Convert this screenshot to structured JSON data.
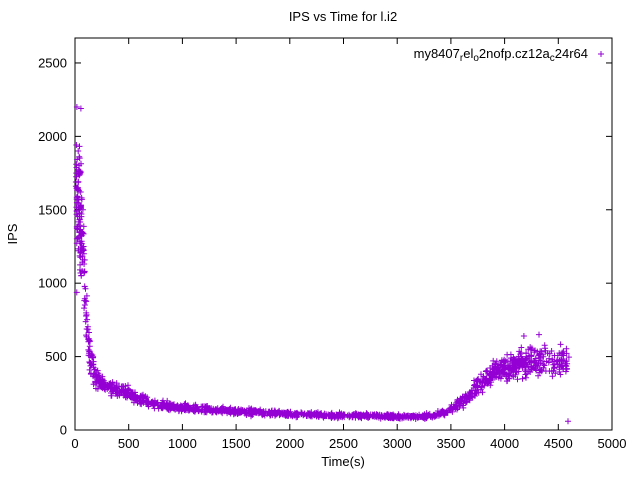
{
  "window": {
    "title": "IPS vs Time for l.i2"
  },
  "chart_data": {
    "type": "scatter",
    "title": "IPS vs Time for l.i2",
    "xlabel": "Time(s)",
    "ylabel": "IPS",
    "xlim": [
      0,
      5000
    ],
    "ylim": [
      0,
      2670
    ],
    "xticks": [
      0,
      500,
      1000,
      1500,
      2000,
      2500,
      3000,
      3500,
      4000,
      4500,
      5000
    ],
    "yticks": [
      0,
      500,
      1000,
      1500,
      2000,
      2500
    ],
    "grid": false,
    "legend_position": "top-right-inside",
    "marker": "plus",
    "marker_color": "#9400d3",
    "series": [
      {
        "name": "my8407_rel_o2nofp.cz12a_c24r64",
        "label_segments": [
          {
            "text": "my8407",
            "sub": false
          },
          {
            "text": "r",
            "sub": true
          },
          {
            "text": "el",
            "sub": false
          },
          {
            "text": "o",
            "sub": true
          },
          {
            "text": "2nofp.cz12a",
            "sub": false
          },
          {
            "text": "c",
            "sub": true
          },
          {
            "text": "24r64",
            "sub": false
          }
        ],
        "color": "#9400d3",
        "seed": 7,
        "trend_profile": [
          [
            8,
            1550,
            640,
            95
          ],
          [
            60,
            1400,
            500,
            40
          ],
          [
            100,
            800,
            250,
            30
          ],
          [
            140,
            500,
            140,
            32
          ],
          [
            200,
            340,
            80,
            40
          ],
          [
            300,
            290,
            60,
            55
          ],
          [
            450,
            270,
            60,
            60
          ],
          [
            600,
            210,
            50,
            60
          ],
          [
            800,
            170,
            40,
            75
          ],
          [
            1000,
            150,
            35,
            95
          ],
          [
            1300,
            135,
            30,
            95
          ],
          [
            1600,
            125,
            30,
            115
          ],
          [
            2000,
            110,
            25,
            115
          ],
          [
            2400,
            100,
            22,
            115
          ],
          [
            2800,
            95,
            20,
            115
          ],
          [
            3200,
            90,
            18,
            40
          ],
          [
            3350,
            100,
            25,
            32
          ],
          [
            3500,
            140,
            40,
            42
          ],
          [
            3650,
            220,
            60,
            55
          ],
          [
            3800,
            330,
            90,
            75
          ],
          [
            3950,
            420,
            110,
            85
          ],
          [
            4100,
            450,
            130,
            95
          ],
          [
            4300,
            465,
            140,
            95
          ],
          [
            4600,
            470,
            140,
            0
          ]
        ],
        "outliers": [
          [
            18,
            2200
          ],
          [
            55,
            2190
          ],
          [
            30,
            1900
          ],
          [
            12,
            1750
          ],
          [
            4590,
            60
          ],
          [
            4320,
            650
          ],
          [
            4180,
            640
          ]
        ]
      }
    ]
  }
}
